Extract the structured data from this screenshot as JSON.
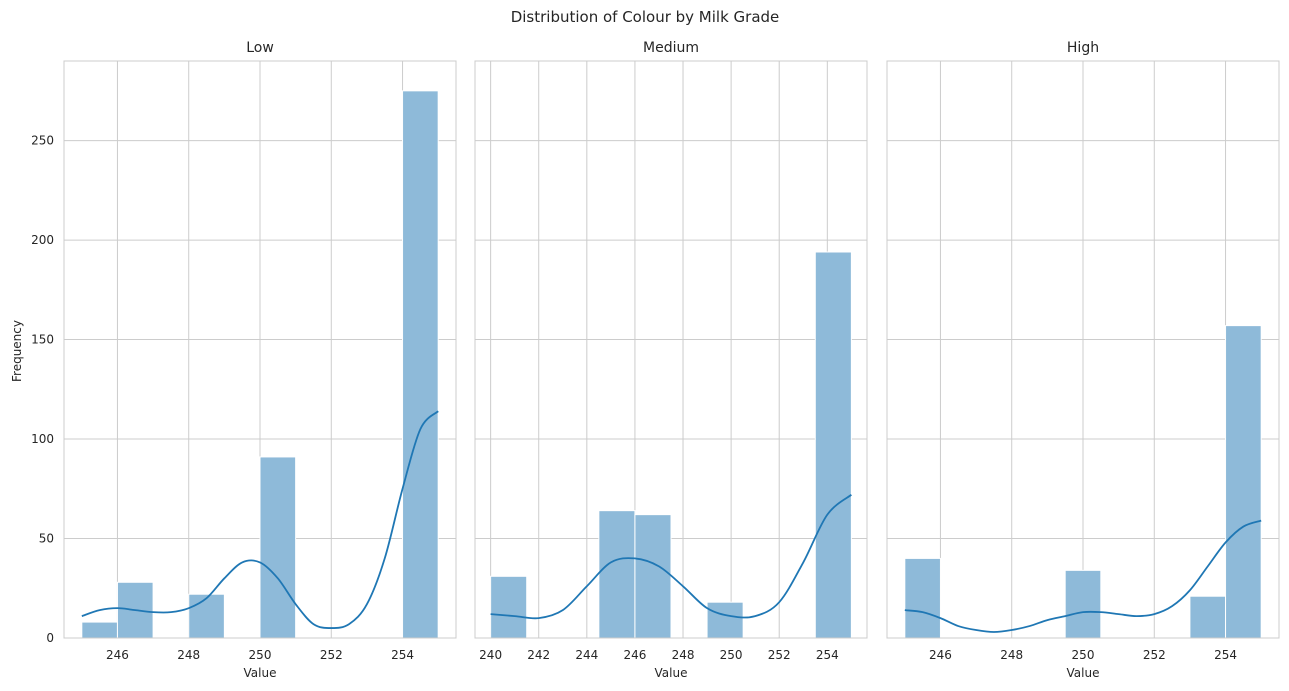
{
  "suptitle": "Distribution of Colour by Milk Grade",
  "shared_ylabel": "Frequency",
  "colors": {
    "bar_fill": "#8ebad9",
    "bar_edge": "#ffffff",
    "kde_line": "#1f77b4",
    "grid": "#cccccc",
    "axes_edge": "#cccccc",
    "text": "#262626"
  },
  "chart_data": [
    {
      "type": "bar",
      "title": "Low",
      "xlabel": "Value",
      "ylabel": "Frequency",
      "xlim": [
        244.5,
        255.5
      ],
      "ylim": [
        0,
        290
      ],
      "xticks": [
        246,
        248,
        250,
        252,
        254
      ],
      "yticks": [
        0,
        50,
        100,
        150,
        200,
        250
      ],
      "grid": true,
      "bins": [
        {
          "x0": 245.0,
          "x1": 246.0,
          "count": 8
        },
        {
          "x0": 246.0,
          "x1": 247.0,
          "count": 28
        },
        {
          "x0": 248.0,
          "x1": 249.0,
          "count": 22
        },
        {
          "x0": 250.0,
          "x1": 251.0,
          "count": 91
        },
        {
          "x0": 254.0,
          "x1": 255.0,
          "count": 275
        }
      ],
      "kde": {
        "x": [
          245,
          245.5,
          246,
          246.5,
          247,
          247.5,
          248,
          248.5,
          249,
          249.5,
          250,
          250.5,
          251,
          251.5,
          252,
          252.5,
          253,
          253.5,
          254,
          254.5,
          255
        ],
        "y": [
          11,
          14,
          15,
          14,
          13,
          13,
          15,
          20,
          30,
          38,
          38,
          30,
          17,
          7,
          5,
          7,
          17,
          40,
          75,
          105,
          114
        ]
      }
    },
    {
      "type": "bar",
      "title": "Medium",
      "xlabel": "Value",
      "xlim": [
        239.35,
        255.65
      ],
      "ylim": [
        0,
        290
      ],
      "xticks": [
        240,
        242,
        244,
        246,
        248,
        250,
        252,
        254
      ],
      "yticks": [
        0,
        50,
        100,
        150,
        200,
        250
      ],
      "grid": true,
      "bins": [
        {
          "x0": 240.0,
          "x1": 241.5,
          "count": 31
        },
        {
          "x0": 244.5,
          "x1": 246.0,
          "count": 64
        },
        {
          "x0": 246.0,
          "x1": 247.5,
          "count": 62
        },
        {
          "x0": 249.0,
          "x1": 250.5,
          "count": 18
        },
        {
          "x0": 253.5,
          "x1": 255.0,
          "count": 194
        }
      ],
      "kde": {
        "x": [
          240,
          241,
          242,
          243,
          244,
          245,
          246,
          247,
          248,
          249,
          250,
          251,
          252,
          253,
          254,
          255
        ],
        "y": [
          12,
          11,
          10,
          14,
          26,
          38,
          40,
          36,
          26,
          15,
          11,
          11,
          18,
          38,
          62,
          72
        ]
      }
    },
    {
      "type": "bar",
      "title": "High",
      "xlabel": "Value",
      "xlim": [
        244.5,
        255.5
      ],
      "ylim": [
        0,
        290
      ],
      "xticks": [
        246,
        248,
        250,
        252,
        254
      ],
      "yticks": [
        0,
        50,
        100,
        150,
        200,
        250
      ],
      "grid": true,
      "bins": [
        {
          "x0": 245.0,
          "x1": 246.0,
          "count": 40
        },
        {
          "x0": 249.5,
          "x1": 250.5,
          "count": 34
        },
        {
          "x0": 253.0,
          "x1": 254.0,
          "count": 21
        },
        {
          "x0": 254.0,
          "x1": 255.0,
          "count": 157
        }
      ],
      "kde": {
        "x": [
          245,
          245.5,
          246,
          246.5,
          247,
          247.5,
          248,
          248.5,
          249,
          249.5,
          250,
          250.5,
          251,
          251.5,
          252,
          252.5,
          253,
          253.5,
          254,
          254.5,
          255
        ],
        "y": [
          14,
          13,
          10,
          6,
          4,
          3,
          4,
          6,
          9,
          11,
          13,
          13,
          12,
          11,
          12,
          16,
          24,
          36,
          48,
          56,
          59
        ]
      }
    }
  ]
}
